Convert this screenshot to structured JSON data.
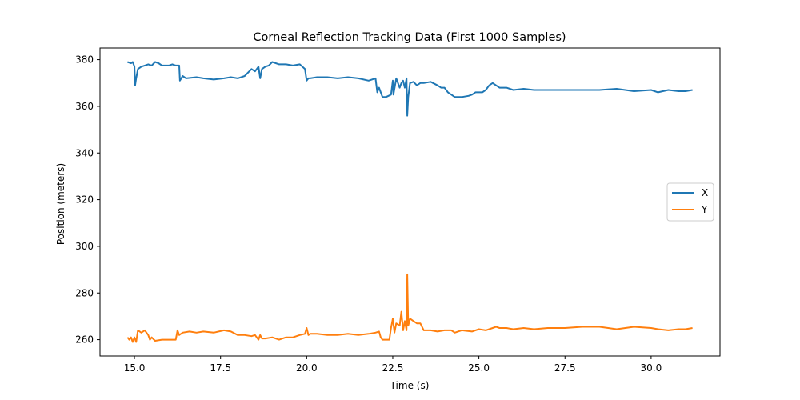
{
  "chart_data": {
    "type": "line",
    "title": "Corneal Reflection Tracking Data (First 1000 Samples)",
    "xlabel": "Time (s)",
    "ylabel": "Position (meters)",
    "xlim": [
      14.0,
      32.0
    ],
    "ylim": [
      253,
      385
    ],
    "xticks": [
      15.0,
      17.5,
      20.0,
      22.5,
      25.0,
      27.5,
      30.0
    ],
    "xtick_labels": [
      "15.0",
      "17.5",
      "20.0",
      "22.5",
      "25.0",
      "27.5",
      "30.0"
    ],
    "yticks": [
      260,
      280,
      300,
      320,
      340,
      360,
      380
    ],
    "ytick_labels": [
      "260",
      "280",
      "300",
      "320",
      "340",
      "360",
      "380"
    ],
    "grid": false,
    "legend_position": "center right",
    "series": [
      {
        "name": "X",
        "color": "#1f77b4",
        "x": [
          14.8,
          14.9,
          14.95,
          15.0,
          15.02,
          15.05,
          15.1,
          15.2,
          15.3,
          15.4,
          15.5,
          15.6,
          15.7,
          15.8,
          15.9,
          16.0,
          16.1,
          16.2,
          16.3,
          16.32,
          16.4,
          16.5,
          16.8,
          17.0,
          17.3,
          17.6,
          17.8,
          18.0,
          18.2,
          18.4,
          18.5,
          18.6,
          18.65,
          18.7,
          18.8,
          18.9,
          19.0,
          19.2,
          19.4,
          19.6,
          19.8,
          19.95,
          20.0,
          20.05,
          20.1,
          20.3,
          20.6,
          20.9,
          21.2,
          21.5,
          21.8,
          22.0,
          22.05,
          22.1,
          22.2,
          22.3,
          22.45,
          22.5,
          22.52,
          22.6,
          22.7,
          22.75,
          22.8,
          22.85,
          22.9,
          22.92,
          22.95,
          23.0,
          23.1,
          23.2,
          23.3,
          23.4,
          23.6,
          23.8,
          23.9,
          24.0,
          24.1,
          24.2,
          24.3,
          24.5,
          24.7,
          24.8,
          24.9,
          25.0,
          25.1,
          25.2,
          25.3,
          25.4,
          25.5,
          25.6,
          25.8,
          26.0,
          26.3,
          26.6,
          27.0,
          27.5,
          28.0,
          28.5,
          29.0,
          29.5,
          30.0,
          30.2,
          30.5,
          30.8,
          31.0,
          31.2
        ],
        "values": [
          379,
          378.5,
          379,
          377,
          369,
          372,
          376,
          377,
          377.5,
          378,
          377.5,
          379,
          378.5,
          377.5,
          377.5,
          377.5,
          378,
          377.5,
          377.5,
          371,
          373,
          372,
          372.5,
          372,
          371.5,
          372,
          372.5,
          372,
          373,
          376,
          375,
          377,
          372,
          376,
          377,
          377.5,
          379,
          378,
          378,
          377.5,
          378,
          376,
          371,
          372,
          372,
          372.5,
          372.5,
          372,
          372.5,
          372,
          371,
          372,
          366,
          368,
          364,
          364,
          365,
          371,
          365,
          372,
          368,
          370,
          371,
          368,
          372,
          356,
          364,
          370,
          370.5,
          369,
          370,
          370,
          370.5,
          369,
          368,
          368,
          366,
          365,
          364,
          364,
          364.5,
          365,
          366,
          366,
          366,
          367,
          369,
          370,
          369,
          368,
          368,
          367,
          367.5,
          367,
          367,
          367,
          367,
          367,
          367.5,
          366.5,
          367,
          366,
          367,
          366.5,
          366.5,
          367
        ]
      },
      {
        "name": "Y",
        "color": "#ff7f0e",
        "x": [
          14.8,
          14.85,
          14.9,
          14.95,
          15.0,
          15.05,
          15.1,
          15.2,
          15.3,
          15.4,
          15.45,
          15.5,
          15.6,
          15.8,
          16.0,
          16.2,
          16.25,
          16.3,
          16.4,
          16.6,
          16.8,
          17.0,
          17.3,
          17.6,
          17.8,
          18.0,
          18.2,
          18.4,
          18.5,
          18.6,
          18.65,
          18.7,
          18.8,
          19.0,
          19.2,
          19.4,
          19.6,
          19.8,
          19.95,
          20.0,
          20.05,
          20.1,
          20.3,
          20.6,
          20.9,
          21.2,
          21.5,
          21.8,
          22.0,
          22.1,
          22.15,
          22.2,
          22.3,
          22.4,
          22.45,
          22.5,
          22.55,
          22.6,
          22.7,
          22.75,
          22.8,
          22.85,
          22.9,
          22.92,
          22.95,
          23.0,
          23.1,
          23.2,
          23.3,
          23.4,
          23.6,
          23.8,
          24.0,
          24.2,
          24.3,
          24.5,
          24.8,
          25.0,
          25.2,
          25.4,
          25.5,
          25.6,
          25.8,
          26.0,
          26.3,
          26.6,
          27.0,
          27.5,
          28.0,
          28.5,
          29.0,
          29.5,
          30.0,
          30.2,
          30.5,
          30.8,
          31.0,
          31.2
        ],
        "values": [
          261,
          260,
          261,
          259,
          261,
          259,
          264,
          263,
          264,
          262,
          260,
          261,
          259.5,
          260,
          260,
          260,
          264,
          262,
          263,
          263.5,
          263,
          263.5,
          263,
          264,
          263.5,
          262,
          262,
          261.5,
          262,
          260,
          262,
          260.5,
          260.5,
          261,
          260,
          261,
          261,
          262,
          262.5,
          265,
          262,
          262.5,
          262.5,
          262,
          262,
          262.5,
          262,
          262.5,
          263,
          263.5,
          261,
          260,
          260,
          260,
          265,
          269,
          263,
          267,
          266,
          272,
          264,
          268,
          264,
          288,
          266,
          269,
          268,
          267,
          267,
          264,
          264,
          263.5,
          264,
          264,
          263,
          264,
          263.5,
          264.5,
          264,
          265,
          265.5,
          265,
          265,
          264.5,
          265,
          264.5,
          265,
          265,
          265.5,
          265.5,
          264.5,
          265.5,
          265,
          264.5,
          264,
          264.5,
          264.5,
          265
        ]
      }
    ]
  }
}
